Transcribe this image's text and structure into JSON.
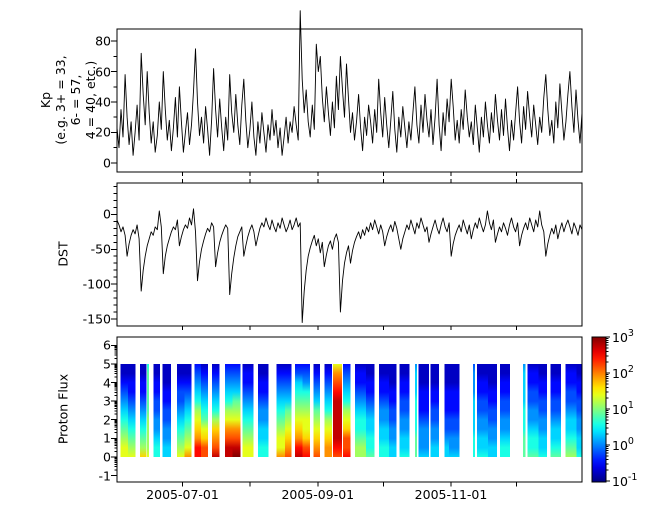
{
  "figure": {
    "background": "#ffffff",
    "line_color": "#000000",
    "frame_color": "#000000"
  },
  "xaxis": {
    "start_date": "2005-06-01",
    "end_date": "2005-12-31",
    "tick_days": [
      30,
      61,
      92,
      122,
      153,
      183
    ],
    "labels": [
      {
        "day": 30,
        "label": "2005-07-01"
      },
      {
        "day": 92,
        "label": "2005-09-01"
      },
      {
        "day": 153,
        "label": "2005-11-01"
      }
    ]
  },
  "colorbar": {
    "colormap": "jet",
    "scale": "log",
    "tick_exponents": [
      3,
      2,
      1,
      0,
      -1
    ],
    "base": "10",
    "top_color": "#800000",
    "bottom_color": "#000080"
  },
  "chart_data": [
    {
      "type": "line",
      "name": "Kp",
      "ylabel_lines": [
        "Kp",
        "(e.g. 3+ = 33,",
        "6- = 57,",
        "4 = 40, etc.)"
      ],
      "ylim": [
        -6,
        88
      ],
      "yticks": [
        0,
        20,
        40,
        60,
        80
      ],
      "ytick_labels": [
        "0",
        "20",
        "40",
        "60",
        "80"
      ],
      "yminor_step": 10,
      "x_range_days": [
        0,
        213
      ],
      "values": [
        23,
        10,
        35,
        17,
        58,
        30,
        12,
        27,
        5,
        20,
        38,
        15,
        72,
        45,
        25,
        60,
        33,
        13,
        27,
        7,
        18,
        40,
        22,
        60,
        35,
        15,
        28,
        8,
        23,
        43,
        17,
        50,
        27,
        7,
        20,
        33,
        12,
        25,
        47,
        75,
        40,
        18,
        30,
        13,
        37,
        22,
        5,
        28,
        62,
        35,
        17,
        42,
        23,
        8,
        30,
        15,
        58,
        33,
        20,
        45,
        25,
        12,
        38,
        55,
        28,
        10,
        22,
        40,
        17,
        5,
        27,
        13,
        33,
        20,
        7,
        25,
        15,
        35,
        18,
        28,
        10,
        23,
        5,
        17,
        30,
        13,
        27,
        20,
        37,
        25,
        15,
        100,
        55,
        33,
        48,
        27,
        17,
        38,
        22,
        78,
        60,
        70,
        43,
        27,
        50,
        33,
        18,
        40,
        23,
        57,
        35,
        70,
        48,
        30,
        65,
        42,
        20,
        33,
        15,
        27,
        45,
        23,
        8,
        30,
        18,
        38,
        27,
        13,
        35,
        20,
        55,
        33,
        17,
        43,
        25,
        10,
        28,
        47,
        22,
        7,
        30,
        17,
        37,
        23,
        10,
        27,
        15,
        33,
        50,
        25,
        13,
        38,
        20,
        45,
        28,
        17,
        35,
        12,
        30,
        55,
        25,
        8,
        33,
        18,
        42,
        27,
        55,
        37,
        15,
        28,
        13,
        35,
        22,
        48,
        30,
        17,
        27,
        12,
        38,
        23,
        7,
        30,
        17,
        40,
        25,
        13,
        33,
        20,
        45,
        28,
        15,
        35,
        18,
        42,
        23,
        8,
        28,
        15,
        33,
        50,
        27,
        13,
        37,
        22,
        47,
        30,
        17,
        38,
        25,
        12,
        30,
        20,
        43,
        58,
        35,
        18,
        28,
        13,
        40,
        23,
        52,
        33,
        15,
        27,
        45,
        60,
        37,
        20,
        48,
        28,
        13,
        33
      ]
    },
    {
      "type": "line",
      "name": "DST",
      "ylabel": "DST",
      "ylim": [
        45,
        -160
      ],
      "yticks": [
        0,
        -50,
        -100,
        -150
      ],
      "ytick_labels": [
        "0",
        "-50",
        "-100",
        "-150"
      ],
      "yminor_step": 10,
      "x_range_days": [
        0,
        213
      ],
      "values": [
        -8,
        -15,
        -25,
        -18,
        -30,
        -60,
        -42,
        -30,
        -22,
        -28,
        -15,
        -35,
        -110,
        -80,
        -60,
        -45,
        -35,
        -25,
        -30,
        -18,
        -22,
        5,
        -18,
        -85,
        -60,
        -45,
        -35,
        -25,
        -18,
        -22,
        -8,
        -45,
        -32,
        -22,
        -15,
        -20,
        -5,
        -15,
        8,
        -25,
        -95,
        -68,
        -50,
        -38,
        -28,
        -20,
        -25,
        -12,
        -18,
        -75,
        -55,
        -40,
        -30,
        -22,
        -15,
        -20,
        -115,
        -85,
        -62,
        -45,
        -32,
        -25,
        -18,
        -60,
        -45,
        -32,
        -22,
        -15,
        -25,
        -45,
        -32,
        -20,
        -12,
        -18,
        -5,
        -15,
        -22,
        -8,
        -18,
        -25,
        -12,
        -20,
        -5,
        -15,
        -25,
        -18,
        -8,
        -22,
        -15,
        -5,
        -18,
        -12,
        -155,
        -110,
        -80,
        -60,
        -48,
        -38,
        -30,
        -45,
        -35,
        -55,
        -40,
        -75,
        -58,
        -45,
        -38,
        -50,
        -35,
        -28,
        -40,
        -140,
        -95,
        -70,
        -55,
        -45,
        -70,
        -52,
        -40,
        -32,
        -25,
        -35,
        -22,
        -30,
        -18,
        -25,
        -12,
        -22,
        -8,
        -18,
        -28,
        -15,
        -25,
        -45,
        -32,
        -22,
        -15,
        -25,
        -10,
        -20,
        -35,
        -50,
        -35,
        -25,
        -15,
        -22,
        -8,
        -18,
        -28,
        -12,
        -20,
        -5,
        -15,
        -25,
        -18,
        -40,
        -28,
        -18,
        -8,
        -20,
        -28,
        -15,
        -5,
        -18,
        -25,
        -12,
        -60,
        -42,
        -30,
        -22,
        -15,
        -25,
        -8,
        -18,
        -28,
        -15,
        -35,
        -22,
        -12,
        -20,
        -5,
        -16,
        -25,
        -15,
        5,
        -12,
        -22,
        -8,
        -40,
        -28,
        -18,
        -25,
        -12,
        -20,
        -30,
        -15,
        -5,
        -18,
        -25,
        -12,
        -45,
        -30,
        -20,
        -12,
        -22,
        -5,
        -15,
        -25,
        -8,
        -18,
        5,
        -15,
        -25,
        -60,
        -42,
        -30,
        -20,
        -28,
        -15,
        -35,
        -22,
        -12,
        -25,
        -15,
        -8,
        -18,
        -28,
        -12,
        -20,
        -30,
        -15,
        -22
      ]
    },
    {
      "type": "heatmap",
      "name": "Proton Flux",
      "ylabel": "Proton Flux",
      "ylim": [
        -1.35,
        6.45
      ],
      "yticks": [
        -1,
        0,
        1,
        2,
        3,
        4,
        5,
        6
      ],
      "ytick_labels": [
        "-1",
        "0",
        "1",
        "2",
        "3",
        "4",
        "5",
        "6"
      ],
      "data_y_range": [
        0,
        5
      ],
      "colormap": "jet",
      "value_encoding": "hex char 0-15 mapped to jet colormap fraction, column listed top(y=5) to bottom(y=0)",
      "bands": [
        [
          1.5,
          5,
          "11234567899"
        ],
        [
          5,
          8.5,
          "11223456789"
        ],
        [
          10.5,
          13.5,
          "1122345678a"
        ],
        [
          13.7,
          14.6,
          "67777788889"
        ],
        [
          16.8,
          19.8,
          "11223344566"
        ],
        [
          20.8,
          24.8,
          "11122334455"
        ],
        [
          27.5,
          31,
          "11233456789"
        ],
        [
          31,
          34.2,
          "1123456789b"
        ],
        [
          35.5,
          38.5,
          "2345689abdd"
        ],
        [
          38.5,
          41.8,
          "12345679acc"
        ],
        [
          43.5,
          47,
          "1234568abce"
        ],
        [
          49.5,
          53,
          "2345689bcee"
        ],
        [
          53,
          56.5,
          "2345789bcef"
        ],
        [
          57.5,
          62.5,
          "12234567899"
        ],
        [
          64.5,
          69.5,
          "11223445566"
        ],
        [
          73,
          77,
          "1234567899b"
        ],
        [
          77,
          80,
          "12345789abc"
        ],
        [
          81.5,
          85,
          "2356789abde"
        ],
        [
          85,
          88.5,
          "23467899acd"
        ],
        [
          90,
          93,
          "12345789abc"
        ],
        [
          95,
          98.5,
          "12345689abb"
        ],
        [
          99,
          103,
          "9bcdeeeeedc"
        ],
        [
          103.5,
          107,
          "2345689accd"
        ],
        [
          109,
          114,
          "12234566788"
        ],
        [
          114,
          118,
          "11223455667"
        ],
        [
          120,
          124.5,
          "11223445566"
        ],
        [
          124.5,
          128,
          "11122334455"
        ],
        [
          129.5,
          134,
          "11223344556"
        ],
        [
          136.5,
          137.5,
          "45556666777"
        ],
        [
          138,
          143,
          "11122234445"
        ],
        [
          143.5,
          147.5,
          "11122334455"
        ],
        [
          150,
          152,
          "11122233455"
        ],
        [
          152,
          157,
          "11122233445"
        ],
        [
          163,
          164,
          "34445555666"
        ],
        [
          165,
          170,
          "11223344556"
        ],
        [
          170,
          174,
          "11122334455"
        ],
        [
          175.5,
          180,
          "11223344566"
        ],
        [
          186,
          187,
          "45555666777"
        ],
        [
          188,
          193,
          "12233445667"
        ],
        [
          193,
          197,
          "11223344556"
        ],
        [
          198.5,
          203.5,
          "11223345567"
        ],
        [
          205.5,
          210.5,
          "12233455678"
        ],
        [
          210.5,
          212.8,
          "11223344556"
        ]
      ]
    }
  ]
}
